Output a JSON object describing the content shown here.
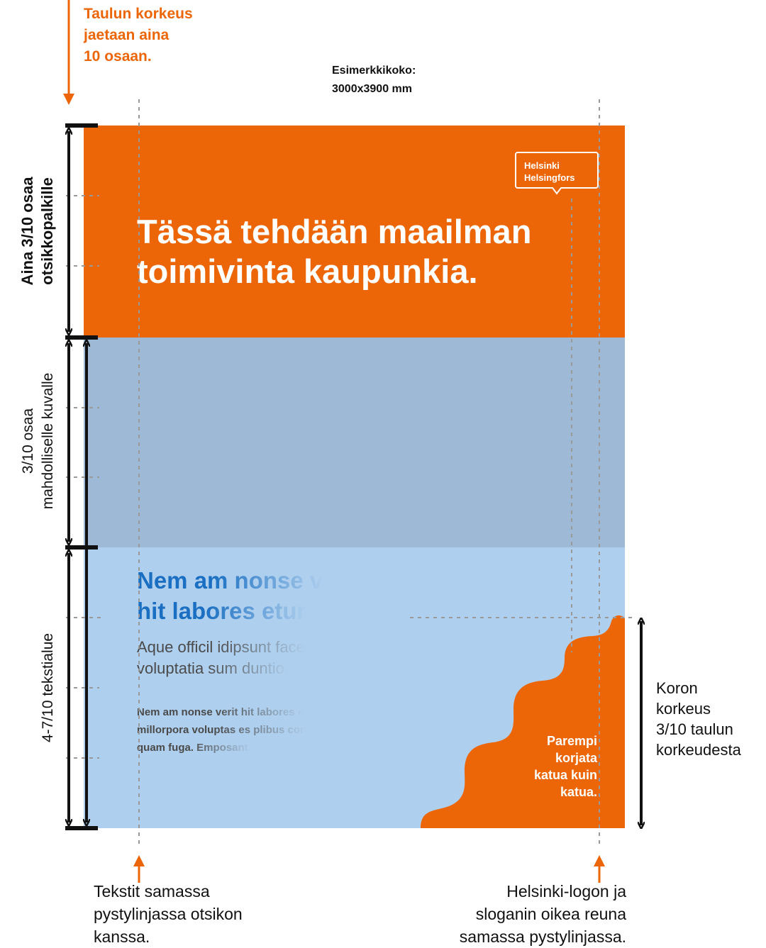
{
  "top_note": [
    "Taulun korkeus",
    "jaetaan aina",
    "10 osaan."
  ],
  "size_note": [
    "Esimerkkikoko:",
    "3000x3900 mm"
  ],
  "left_labels": {
    "header": [
      "Aina 3/10 osaa",
      "otsikkopalkille"
    ],
    "image": [
      "3/10 osaa",
      "mahdolliselle kuvalle"
    ],
    "text": [
      "4-7/10 tekstialue"
    ]
  },
  "poster": {
    "logo": [
      "Helsinki",
      "Helsingfors"
    ],
    "headline": [
      "Tässä tehdään maailman",
      "toimivinta kaupunkia."
    ],
    "subheading": [
      "Nem am nonse v",
      "hit labores etur"
    ],
    "lead": [
      "Aque officil idipsunt face",
      "voluptatia sum duntio."
    ],
    "body": [
      "Nem am nonse verit hit labores e",
      "millorpora voluptas es plibus con",
      "quam fuga. Emposant."
    ],
    "slogan": [
      "Parempi",
      "korjata",
      "katua kuin",
      "katua."
    ]
  },
  "right_note": [
    "Koron",
    "korkeus",
    "3/10 taulun",
    "korkeudesta"
  ],
  "bottom_notes": {
    "left": [
      "Tekstit samassa",
      "pystylinjassa otsikon",
      "kanssa."
    ],
    "right": [
      "Helsinki-logon ja",
      "sloganin oikea reuna",
      "samassa pystylinjassa."
    ]
  }
}
